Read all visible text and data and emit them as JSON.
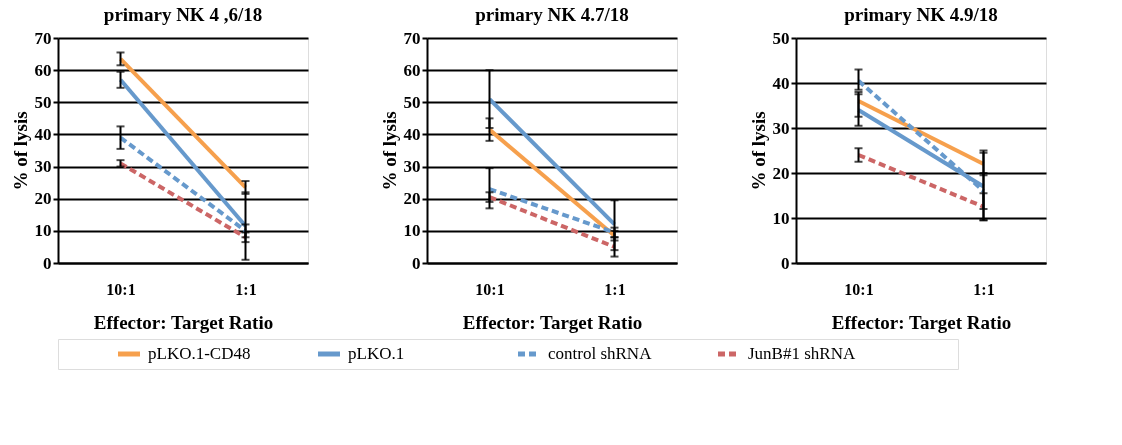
{
  "chart_data": [
    {
      "type": "line",
      "title": "primary NK 4 ,6/18",
      "xlabel": "Effector: Target Ratio",
      "ylabel": "% of lysis",
      "categories": [
        "10:1",
        "1:1"
      ],
      "ylim": [
        0,
        70
      ],
      "yticks": [
        0,
        10,
        20,
        30,
        40,
        50,
        60,
        70
      ],
      "grid": "y",
      "legend": "bottom",
      "marker": "none",
      "series": [
        {
          "name": "pLKO.1-CD48",
          "color": "#f6a04d",
          "line_style": "solid",
          "values": [
            63.5,
            23.5
          ],
          "errors": [
            [
              61.5,
              65.5
            ],
            [
              21.5,
              25.5
            ]
          ]
        },
        {
          "name": "pLKO.1",
          "color": "#6699cc",
          "line_style": "solid",
          "values": [
            57,
            11.5
          ],
          "errors": [
            [
              54.5,
              59.5
            ],
            [
              1,
              22
            ]
          ]
        },
        {
          "name": "control shRNA",
          "color": "#6699cc",
          "line_style": "dashed",
          "values": [
            39,
            10
          ],
          "errors": [
            [
              35.5,
              42.5
            ],
            [
              8,
              12
            ]
          ]
        },
        {
          "name": "JunB#1 shRNA",
          "color": "#cc6666",
          "line_style": "dashed",
          "values": [
            31,
            8
          ],
          "errors": [
            [
              30,
              32
            ],
            [
              6.5,
              9.5
            ]
          ]
        }
      ]
    },
    {
      "type": "line",
      "title": "primary NK 4.7/18",
      "xlabel": "Effector: Target Ratio",
      "ylabel": "% of lysis",
      "categories": [
        "10:1",
        "1:1"
      ],
      "ylim": [
        0,
        70
      ],
      "yticks": [
        0,
        10,
        20,
        30,
        40,
        50,
        60,
        70
      ],
      "grid": "y",
      "legend": "bottom",
      "marker": "none",
      "series": [
        {
          "name": "pLKO.1-CD48",
          "color": "#f6a04d",
          "line_style": "solid",
          "values": [
            41.5,
            8.5
          ],
          "errors": [
            [
              38,
              45
            ],
            [
              7,
              10
            ]
          ]
        },
        {
          "name": "pLKO.1",
          "color": "#6699cc",
          "line_style": "solid",
          "values": [
            51,
            12
          ],
          "errors": [
            [
              42,
              60
            ],
            [
              4,
              19.5
            ]
          ]
        },
        {
          "name": "control shRNA",
          "color": "#6699cc",
          "line_style": "dashed",
          "values": [
            23,
            9.5
          ],
          "errors": [
            [
              17,
              29.5
            ],
            [
              8,
              11
            ]
          ]
        },
        {
          "name": "JunB#1 shRNA",
          "color": "#cc6666",
          "line_style": "dashed",
          "values": [
            20.5,
            5
          ],
          "errors": [
            [
              19,
              22
            ],
            [
              2,
              8
            ]
          ]
        }
      ]
    },
    {
      "type": "line",
      "title": "primary NK 4.9/18",
      "xlabel": "Effector: Target Ratio",
      "ylabel": "% of lysis",
      "categories": [
        "10:1",
        "1:1"
      ],
      "ylim": [
        0,
        50
      ],
      "yticks": [
        0,
        10,
        20,
        30,
        40,
        50
      ],
      "grid": "y",
      "legend": "bottom",
      "marker": "none",
      "series": [
        {
          "name": "pLKO.1-CD48",
          "color": "#f6a04d",
          "line_style": "solid",
          "values": [
            36,
            22
          ],
          "errors": [
            [
              32.5,
              38
            ],
            [
              19.5,
              25
            ]
          ]
        },
        {
          "name": "pLKO.1",
          "color": "#6699cc",
          "line_style": "solid",
          "values": [
            34,
            17
          ],
          "errors": [
            [
              30.5,
              37.5
            ],
            [
              9.5,
              24.5
            ]
          ]
        },
        {
          "name": "control shRNA",
          "color": "#6699cc",
          "line_style": "dashed",
          "values": [
            40.5,
            16
          ],
          "errors": [
            [
              38.5,
              43
            ],
            [
              12,
              20
            ]
          ]
        },
        {
          "name": "JunB#1 shRNA",
          "color": "#cc6666",
          "line_style": "dashed",
          "values": [
            24,
            12.5
          ],
          "errors": [
            [
              22.5,
              25.5
            ],
            [
              9.5,
              15.5
            ]
          ]
        }
      ]
    }
  ]
}
